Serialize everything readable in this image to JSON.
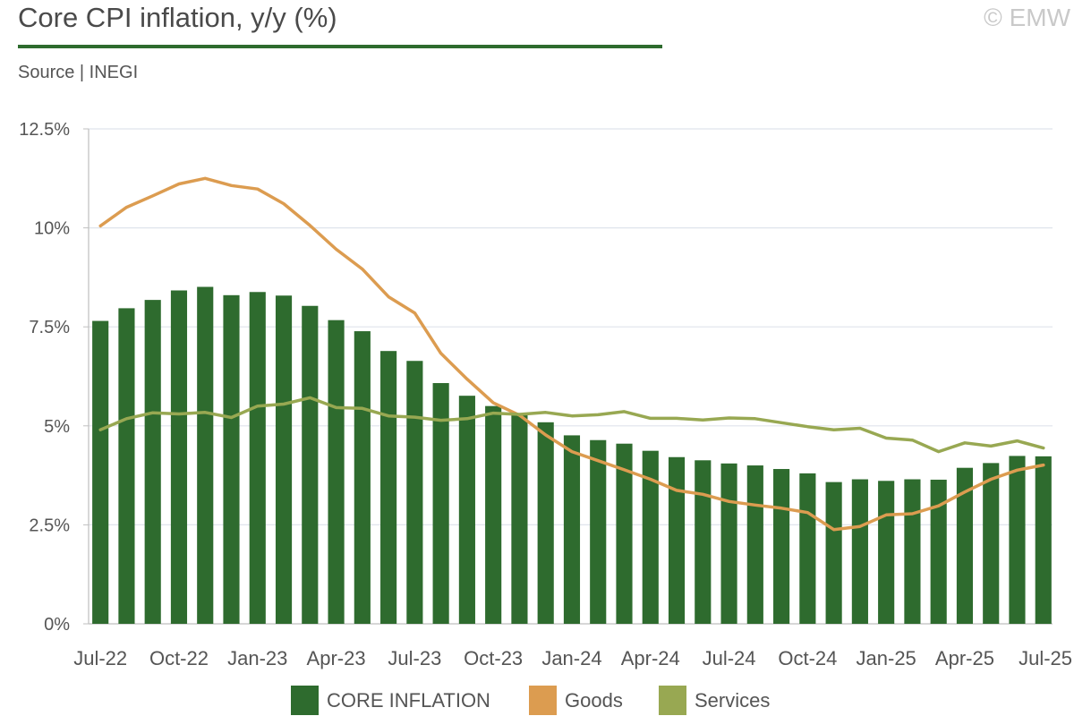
{
  "header": {
    "title": "Core CPI inflation, y/y (%)",
    "copyright": "© EMW",
    "source": "Source | INEGI"
  },
  "colors": {
    "core": "#2e6b2e",
    "goods": "#dc9c50",
    "services": "#98a852",
    "grid": "#dfe4ec",
    "axis": "#bfbfbf",
    "text": "#555555",
    "title_rule": "#2e6b2e"
  },
  "legend": {
    "core": "CORE INFLATION",
    "goods": "Goods",
    "services": "Services"
  },
  "chart_data": {
    "type": "bar",
    "title": "Core CPI inflation, y/y (%)",
    "ylim": [
      0,
      12.5
    ],
    "yticks": [
      0,
      2.5,
      5,
      7.5,
      10,
      12.5
    ],
    "ytick_labels": [
      "0%",
      "2.5%",
      "5%",
      "7.5%",
      "10%",
      "12.5%"
    ],
    "grid": true,
    "legend_position": "bottom",
    "categories": [
      "Jul-22",
      "Aug-22",
      "Sep-22",
      "Oct-22",
      "Nov-22",
      "Dec-22",
      "Jan-23",
      "Feb-23",
      "Mar-23",
      "Apr-23",
      "May-23",
      "Jun-23",
      "Jul-23",
      "Aug-23",
      "Sep-23",
      "Oct-23",
      "Nov-23",
      "Dec-23",
      "Jan-24",
      "Feb-24",
      "Mar-24",
      "Apr-24",
      "May-24",
      "Jun-24",
      "Jul-24",
      "Aug-24",
      "Sep-24",
      "Oct-24",
      "Nov-24",
      "Dec-24",
      "Jan-25",
      "Feb-25",
      "Mar-25",
      "Apr-25",
      "May-25",
      "Jun-25",
      "Jul-25"
    ],
    "xtick_labels": [
      {
        "index": 0,
        "label": "Jul-22"
      },
      {
        "index": 3,
        "label": "Oct-22"
      },
      {
        "index": 6,
        "label": "Jan-23"
      },
      {
        "index": 9,
        "label": "Apr-23"
      },
      {
        "index": 12,
        "label": "Jul-23"
      },
      {
        "index": 15,
        "label": "Oct-23"
      },
      {
        "index": 18,
        "label": "Jan-24"
      },
      {
        "index": 21,
        "label": "Apr-24"
      },
      {
        "index": 24,
        "label": "Jul-24"
      },
      {
        "index": 27,
        "label": "Oct-24"
      },
      {
        "index": 30,
        "label": "Jan-25"
      },
      {
        "index": 33,
        "label": "Apr-25"
      },
      {
        "index": 36,
        "label": "Jul-25"
      }
    ],
    "series": [
      {
        "name": "CORE INFLATION",
        "type": "bar",
        "values": [
          7.65,
          7.97,
          8.18,
          8.42,
          8.51,
          8.3,
          8.38,
          8.29,
          8.03,
          7.67,
          7.39,
          6.89,
          6.64,
          6.08,
          5.76,
          5.5,
          5.3,
          5.09,
          4.76,
          4.64,
          4.55,
          4.37,
          4.21,
          4.13,
          4.05,
          4.0,
          3.91,
          3.8,
          3.58,
          3.65,
          3.61,
          3.65,
          3.64,
          3.94,
          4.06,
          4.24,
          4.23
        ]
      },
      {
        "name": "Goods",
        "type": "line",
        "values": [
          10.05,
          10.52,
          10.81,
          11.11,
          11.25,
          11.07,
          10.98,
          10.61,
          10.06,
          9.46,
          8.96,
          8.26,
          7.85,
          6.83,
          6.18,
          5.58,
          5.27,
          4.77,
          4.35,
          4.12,
          3.89,
          3.65,
          3.37,
          3.27,
          3.09,
          3.0,
          2.92,
          2.81,
          2.38,
          2.46,
          2.75,
          2.78,
          2.98,
          3.33,
          3.65,
          3.88,
          4.01
        ]
      },
      {
        "name": "Services",
        "type": "line",
        "values": [
          4.9,
          5.18,
          5.33,
          5.3,
          5.34,
          5.21,
          5.5,
          5.55,
          5.71,
          5.46,
          5.44,
          5.25,
          5.22,
          5.14,
          5.18,
          5.32,
          5.29,
          5.34,
          5.25,
          5.28,
          5.36,
          5.19,
          5.19,
          5.15,
          5.2,
          5.18,
          5.08,
          4.98,
          4.9,
          4.94,
          4.69,
          4.64,
          4.35,
          4.57,
          4.49,
          4.62,
          4.44
        ]
      }
    ]
  }
}
